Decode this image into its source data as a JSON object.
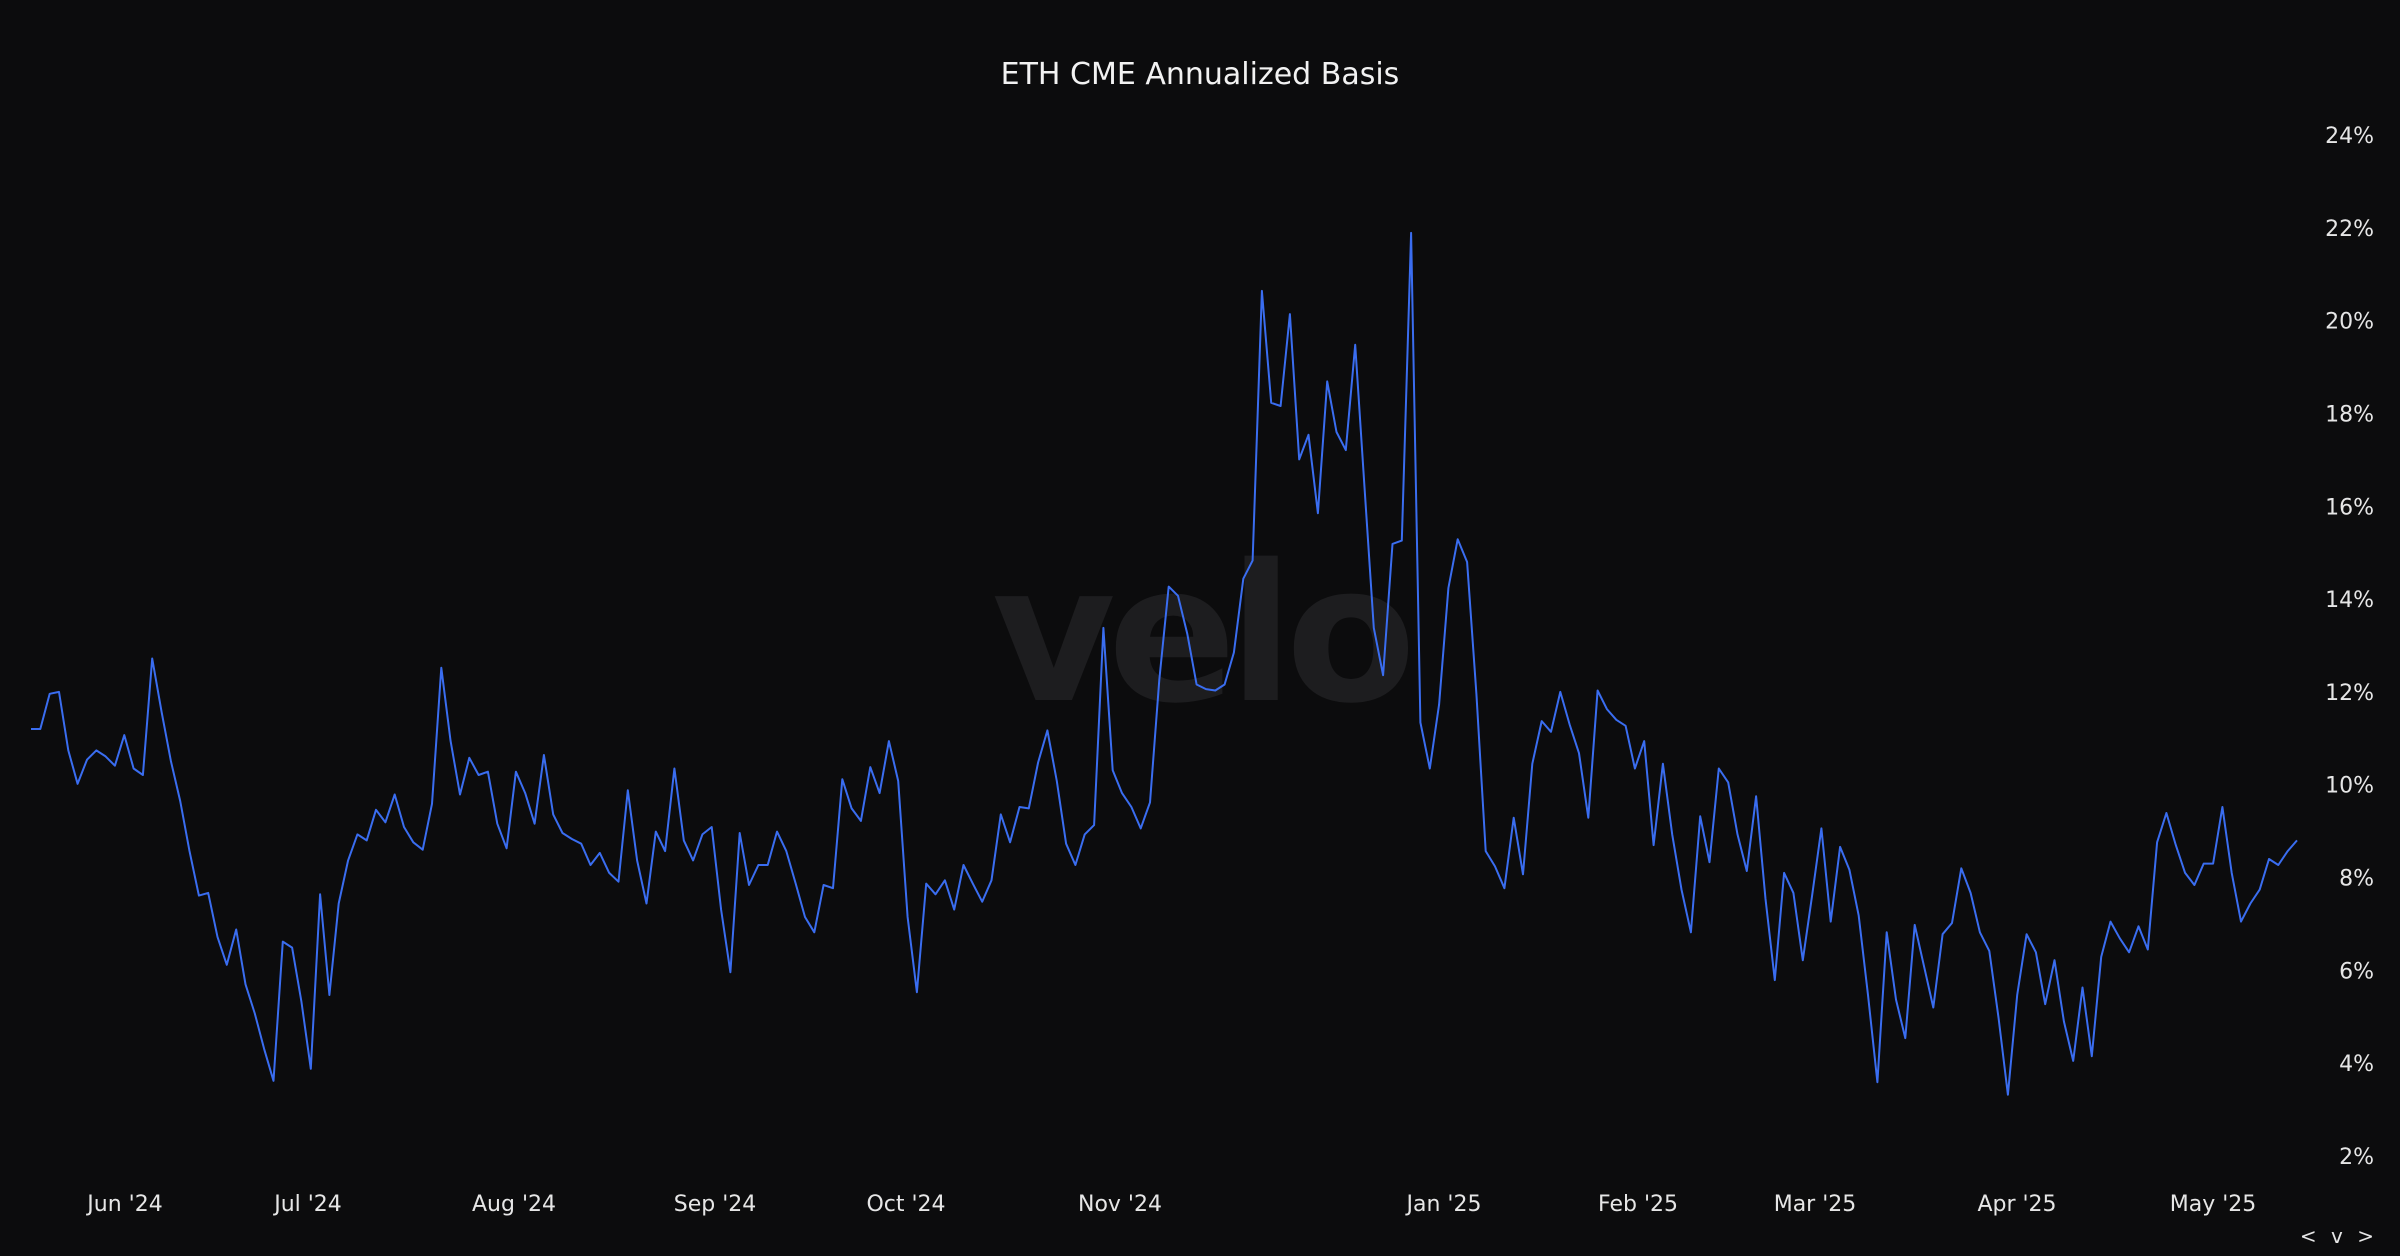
{
  "chart_data": {
    "type": "line",
    "title": "ETH CME Annualized Basis",
    "watermark": "velo",
    "xlabel": "",
    "ylabel": "",
    "xlim": [
      "2024-05-17",
      "2025-05-15"
    ],
    "ylim": [
      2,
      24
    ],
    "y_axis_position": "right",
    "grid": false,
    "line_color": "#3a6df0",
    "background": "#0c0c0d",
    "x_tick_labels": [
      "Jun '24",
      "Jul '24",
      "Aug '24",
      "Sep '24",
      "Oct '24",
      "Nov '24",
      "Jan '25",
      "Feb '25",
      "Mar '25",
      "Apr '25",
      "May '25"
    ],
    "y_tick_labels": [
      "24%",
      "22%",
      "20%",
      "18%",
      "16%",
      "14%",
      "12%",
      "10%",
      "8%",
      "6%",
      "4%",
      "2%"
    ],
    "y_ticks": [
      24,
      22,
      20,
      18,
      16,
      14,
      12,
      10,
      8,
      6,
      4,
      2
    ],
    "series": [
      {
        "values": [
          11.2,
          11.2,
          11.96,
          12.0,
          10.74,
          10.02,
          10.54,
          10.74,
          10.61,
          10.41,
          11.07,
          10.35,
          10.21,
          12.72,
          11.57,
          10.51,
          9.65,
          8.57,
          7.61,
          7.67,
          6.72,
          6.12,
          6.88,
          5.7,
          5.07,
          4.31,
          3.62,
          6.62,
          6.49,
          5.33,
          3.88,
          7.64,
          5.47,
          7.44,
          8.37,
          8.93,
          8.8,
          9.46,
          9.19,
          9.79,
          9.09,
          8.76,
          8.6,
          9.59,
          12.52,
          10.94,
          9.79,
          10.58,
          10.21,
          10.28,
          9.16,
          8.63,
          10.28,
          9.82,
          9.16,
          10.64,
          9.36,
          8.96,
          8.83,
          8.73,
          8.27,
          8.53,
          8.1,
          7.91,
          9.88,
          8.37,
          7.44,
          8.99,
          8.57,
          10.35,
          8.8,
          8.37,
          8.93,
          9.09,
          7.31,
          5.96,
          8.96,
          7.84,
          8.27,
          8.27,
          8.99,
          8.57,
          7.87,
          7.15,
          6.82,
          7.84,
          7.77,
          10.12,
          9.49,
          9.22,
          10.38,
          9.82,
          10.94,
          10.08,
          7.15,
          5.53,
          7.87,
          7.64,
          7.94,
          7.31,
          8.27,
          7.87,
          7.48,
          7.94,
          9.36,
          8.76,
          9.52,
          9.49,
          10.48,
          11.17,
          10.08,
          8.73,
          8.27,
          8.93,
          9.13,
          13.38,
          10.31,
          9.82,
          9.52,
          9.06,
          9.62,
          12.26,
          14.27,
          14.07,
          13.25,
          12.16,
          12.06,
          12.03,
          12.16,
          12.85,
          14.44,
          14.83,
          20.64,
          18.23,
          18.16,
          20.14,
          17.01,
          17.54,
          15.85,
          18.69,
          17.6,
          17.21,
          19.48,
          16.41,
          13.38,
          12.36,
          15.19,
          15.26,
          21.89,
          11.34,
          10.35,
          11.73,
          14.24,
          15.29,
          14.8,
          11.96,
          8.57,
          8.24,
          7.77,
          9.29,
          8.07,
          10.45,
          11.37,
          11.14,
          12.0,
          11.3,
          10.68,
          9.29,
          12.03,
          11.63,
          11.4,
          11.27,
          10.35,
          10.94,
          8.7,
          10.45,
          8.93,
          7.74,
          6.82,
          9.32,
          8.33,
          10.35,
          10.05,
          8.93,
          8.14,
          9.75,
          7.54,
          5.79,
          8.1,
          7.67,
          6.22,
          7.61,
          9.06,
          7.05,
          8.66,
          8.17,
          7.18,
          5.47,
          3.59,
          6.82,
          5.37,
          4.54,
          6.98,
          6.09,
          5.2,
          6.78,
          7.02,
          8.2,
          7.67,
          6.82,
          6.42,
          4.97,
          3.32,
          5.47,
          6.78,
          6.39,
          5.27,
          6.22,
          4.9,
          4.05,
          5.63,
          4.15,
          6.29,
          7.05,
          6.69,
          6.39,
          6.95,
          6.45,
          8.76,
          9.39,
          8.7,
          8.1,
          7.84,
          8.3,
          8.3,
          9.52,
          8.1,
          7.05,
          7.44,
          7.74,
          8.4,
          8.27,
          8.57,
          8.8
        ]
      }
    ]
  },
  "controls": {
    "nav_label": "< v >"
  }
}
